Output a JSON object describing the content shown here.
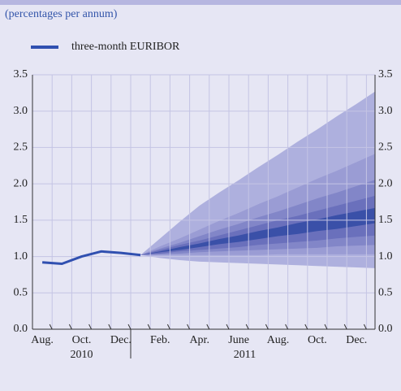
{
  "chart_data": {
    "type": "fan",
    "subtitle": "(percentages per annum)",
    "categories": [
      "Aug.",
      null,
      "Oct.",
      null,
      "Dec.",
      null,
      "Feb.",
      null,
      "Apr.",
      null,
      "June",
      null,
      "Aug.",
      null,
      "Oct.",
      null,
      "Dec.",
      null
    ],
    "years": [
      "2010",
      "2011"
    ],
    "ylim": [
      0,
      3.5
    ],
    "yticks": [
      {
        "value": 0,
        "label": "0.0"
      },
      0.5,
      {
        "value": 1,
        "label": "1.0"
      },
      1.5,
      {
        "value": 2,
        "label": "2.0"
      },
      2.5,
      {
        "value": 3,
        "label": "3.0"
      },
      3.5
    ],
    "grid": true,
    "series": [
      {
        "name": "three-month EURIBOR",
        "color": "#3050b0",
        "values": [
          0.92,
          0.9,
          1.0,
          1.07,
          1.05,
          1.02,
          null,
          null,
          null,
          null,
          null,
          null,
          null,
          null,
          null,
          null,
          null,
          null
        ]
      }
    ],
    "fan": [
      {
        "color": "#aeb0de",
        "upper": [
          null,
          null,
          null,
          null,
          null,
          1.02,
          1.25,
          1.48,
          1.7,
          1.88,
          2.05,
          2.23,
          2.4,
          2.58,
          2.75,
          2.93,
          3.1,
          3.28
        ],
        "lower": [
          null,
          null,
          null,
          null,
          null,
          1.02,
          0.98,
          0.95,
          0.93,
          0.92,
          0.91,
          0.9,
          0.89,
          0.88,
          0.87,
          0.86,
          0.85,
          0.84
        ]
      },
      {
        "color": "#9a9cd4",
        "upper": [
          null,
          null,
          null,
          null,
          null,
          1.02,
          1.14,
          1.25,
          1.37,
          1.49,
          1.6,
          1.72,
          1.83,
          1.95,
          2.07,
          2.18,
          2.3,
          2.42
        ],
        "lower": [
          null,
          null,
          null,
          null,
          null,
          1.02,
          1.02,
          1.02,
          1.02,
          1.02,
          1.02,
          1.02,
          1.03,
          1.03,
          1.03,
          1.03,
          1.03,
          1.03
        ]
      },
      {
        "color": "#8286c8",
        "upper": [
          null,
          null,
          null,
          null,
          null,
          1.02,
          1.11,
          1.19,
          1.28,
          1.37,
          1.45,
          1.54,
          1.62,
          1.71,
          1.8,
          1.88,
          1.97,
          2.06
        ],
        "lower": [
          null,
          null,
          null,
          null,
          null,
          1.02,
          1.03,
          1.04,
          1.06,
          1.07,
          1.08,
          1.09,
          1.1,
          1.11,
          1.12,
          1.14,
          1.15,
          1.16
        ]
      },
      {
        "color": "#6a70bc",
        "upper": [
          null,
          null,
          null,
          null,
          null,
          1.02,
          1.09,
          1.16,
          1.22,
          1.29,
          1.36,
          1.43,
          1.5,
          1.56,
          1.63,
          1.7,
          1.77,
          1.84
        ],
        "lower": [
          null,
          null,
          null,
          null,
          null,
          1.02,
          1.04,
          1.07,
          1.09,
          1.11,
          1.13,
          1.16,
          1.18,
          1.2,
          1.22,
          1.25,
          1.27,
          1.29
        ]
      },
      {
        "color": "#3a50a8",
        "upper": [
          null,
          null,
          null,
          null,
          null,
          1.02,
          1.07,
          1.13,
          1.18,
          1.24,
          1.29,
          1.35,
          1.4,
          1.46,
          1.51,
          1.57,
          1.62,
          1.67
        ],
        "lower": [
          null,
          null,
          null,
          null,
          null,
          1.02,
          1.06,
          1.09,
          1.13,
          1.17,
          1.2,
          1.24,
          1.28,
          1.31,
          1.35,
          1.38,
          1.42,
          1.46
        ]
      }
    ]
  }
}
